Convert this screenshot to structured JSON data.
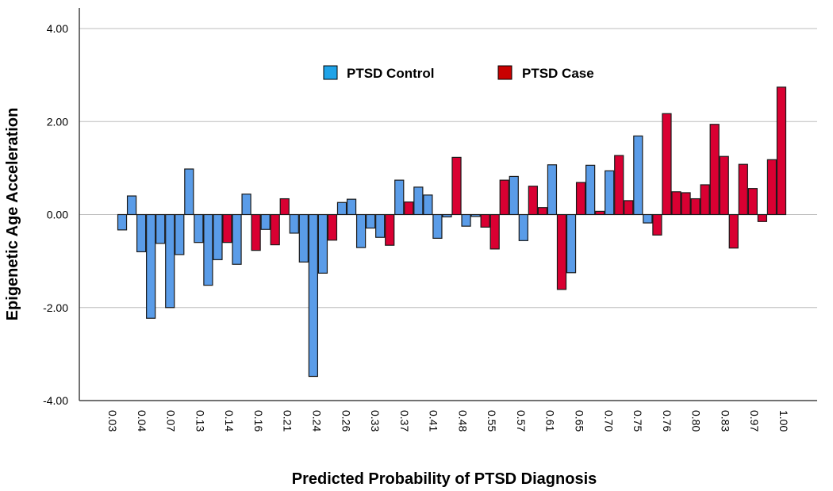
{
  "chart_data": {
    "type": "bar",
    "title": "",
    "xlabel": "Predicted Probability of PTSD Diagnosis",
    "ylabel": "Epigenetic Age Acceleration",
    "ylim": [
      -4,
      4
    ],
    "yticks": [
      "4.00",
      "2.00",
      "0.00",
      "-2.00",
      "-4.00"
    ],
    "ytick_values": [
      4,
      2,
      0,
      -2,
      -4
    ],
    "xtick_labels": [
      "0.03",
      "0.04",
      "0.07",
      "0.13",
      "0.14",
      "0.16",
      "0.21",
      "0.24",
      "0.26",
      "0.33",
      "0.37",
      "0.41",
      "0.48",
      "0.55",
      "0.57",
      "0.61",
      "0.65",
      "0.70",
      "0.75",
      "0.76",
      "0.80",
      "0.83",
      "0.97",
      "1.00"
    ],
    "grid": true,
    "legend_placement": "top-center",
    "legend": [
      {
        "name": "PTSD Control",
        "color": "#1FA3E8"
      },
      {
        "name": "PTSD Case",
        "color": "#C80000"
      }
    ],
    "bar_colors": {
      "control": "#5A9CE8",
      "case": "#D90032"
    },
    "bars": {
      "group": [
        "control",
        "control",
        "control",
        "control",
        "control",
        "control",
        "control",
        "control",
        "control",
        "control",
        "control",
        "case",
        "control",
        "control",
        "case",
        "control",
        "case",
        "case",
        "control",
        "control",
        "control",
        "control",
        "case",
        "control",
        "control",
        "control",
        "control",
        "control",
        "case",
        "control",
        "case",
        "control",
        "control",
        "control",
        "control",
        "case",
        "control",
        "control",
        "case",
        "case",
        "case",
        "control",
        "control",
        "case",
        "case",
        "control",
        "case",
        "control",
        "case",
        "control",
        "case",
        "control",
        "case",
        "case",
        "control",
        "control",
        "case",
        "case",
        "case",
        "case",
        "case",
        "case",
        "case",
        "case",
        "case",
        "case",
        "case",
        "case",
        "case",
        "case"
      ],
      "values": [
        -0.33,
        0.4,
        -0.8,
        -2.23,
        -0.62,
        -2.0,
        -0.86,
        0.98,
        -0.6,
        -1.52,
        -0.97,
        -0.6,
        -1.07,
        0.44,
        -0.77,
        -0.32,
        -0.65,
        0.34,
        -0.4,
        -1.02,
        -3.48,
        -1.26,
        -0.55,
        0.26,
        0.33,
        -0.71,
        -0.29,
        -0.49,
        -0.66,
        0.74,
        0.27,
        0.59,
        0.42,
        -0.51,
        -0.05,
        1.23,
        -0.25,
        -0.04,
        -0.27,
        -0.74,
        0.74,
        0.82,
        -0.56,
        0.61,
        0.15,
        1.07,
        -1.61,
        -1.25,
        0.69,
        1.06,
        0.07,
        0.94,
        1.27,
        0.3,
        1.69,
        -0.18,
        -0.44,
        2.17,
        0.49,
        0.47,
        0.34,
        0.64,
        1.94,
        1.25,
        -0.72,
        1.08,
        0.56,
        -0.15,
        1.18,
        2.74
      ]
    }
  }
}
